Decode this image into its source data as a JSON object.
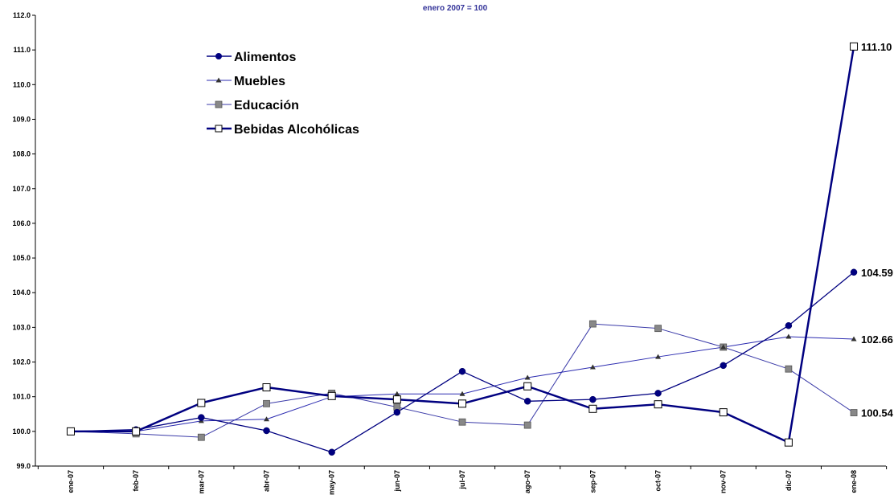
{
  "chart_data": {
    "type": "line",
    "title": "",
    "subtitle": "enero 2007 = 100",
    "xlabel": "",
    "ylabel": "",
    "categories": [
      "ene-07",
      "feb-07",
      "mar-07",
      "abr-07",
      "may-07",
      "jun-07",
      "jul-07",
      "ago-07",
      "sep-07",
      "oct-07",
      "nov-07",
      "dic-07",
      "ene-08"
    ],
    "ylim": [
      99.0,
      112.0
    ],
    "yticks": [
      "99.0",
      "100.0",
      "101.0",
      "102.0",
      "103.0",
      "104.0",
      "105.0",
      "106.0",
      "107.0",
      "108.0",
      "109.0",
      "110.0",
      "111.0",
      "112.0"
    ],
    "grid": false,
    "legend_position": "top-left",
    "series": [
      {
        "name": "Alimentos",
        "color": "#000080",
        "marker": "circle",
        "values": [
          100.0,
          100.05,
          100.4,
          100.02,
          99.4,
          100.55,
          101.73,
          100.87,
          100.92,
          101.1,
          101.9,
          103.05,
          104.59
        ]
      },
      {
        "name": "Muebles",
        "color": "#2b2bb0",
        "marker": "triangle",
        "values": [
          100.0,
          100.0,
          100.3,
          100.35,
          101.0,
          101.08,
          101.08,
          101.55,
          101.85,
          102.15,
          102.43,
          102.73,
          102.66
        ]
      },
      {
        "name": "Educación",
        "color": "#3a3aa8",
        "marker": "square-gray",
        "values": [
          100.0,
          99.93,
          99.83,
          100.8,
          101.1,
          100.7,
          100.27,
          100.18,
          103.1,
          102.97,
          102.43,
          101.8,
          100.54
        ]
      },
      {
        "name": "Bebidas Alcohólicas",
        "color": "#000080",
        "marker": "square-open",
        "values": [
          100.0,
          100.0,
          100.82,
          101.27,
          101.02,
          100.92,
          100.8,
          101.3,
          100.65,
          100.78,
          100.55,
          99.68,
          111.1
        ]
      }
    ],
    "end_labels": [
      "111.10",
      "104.59",
      "102.66",
      "100.54"
    ]
  }
}
